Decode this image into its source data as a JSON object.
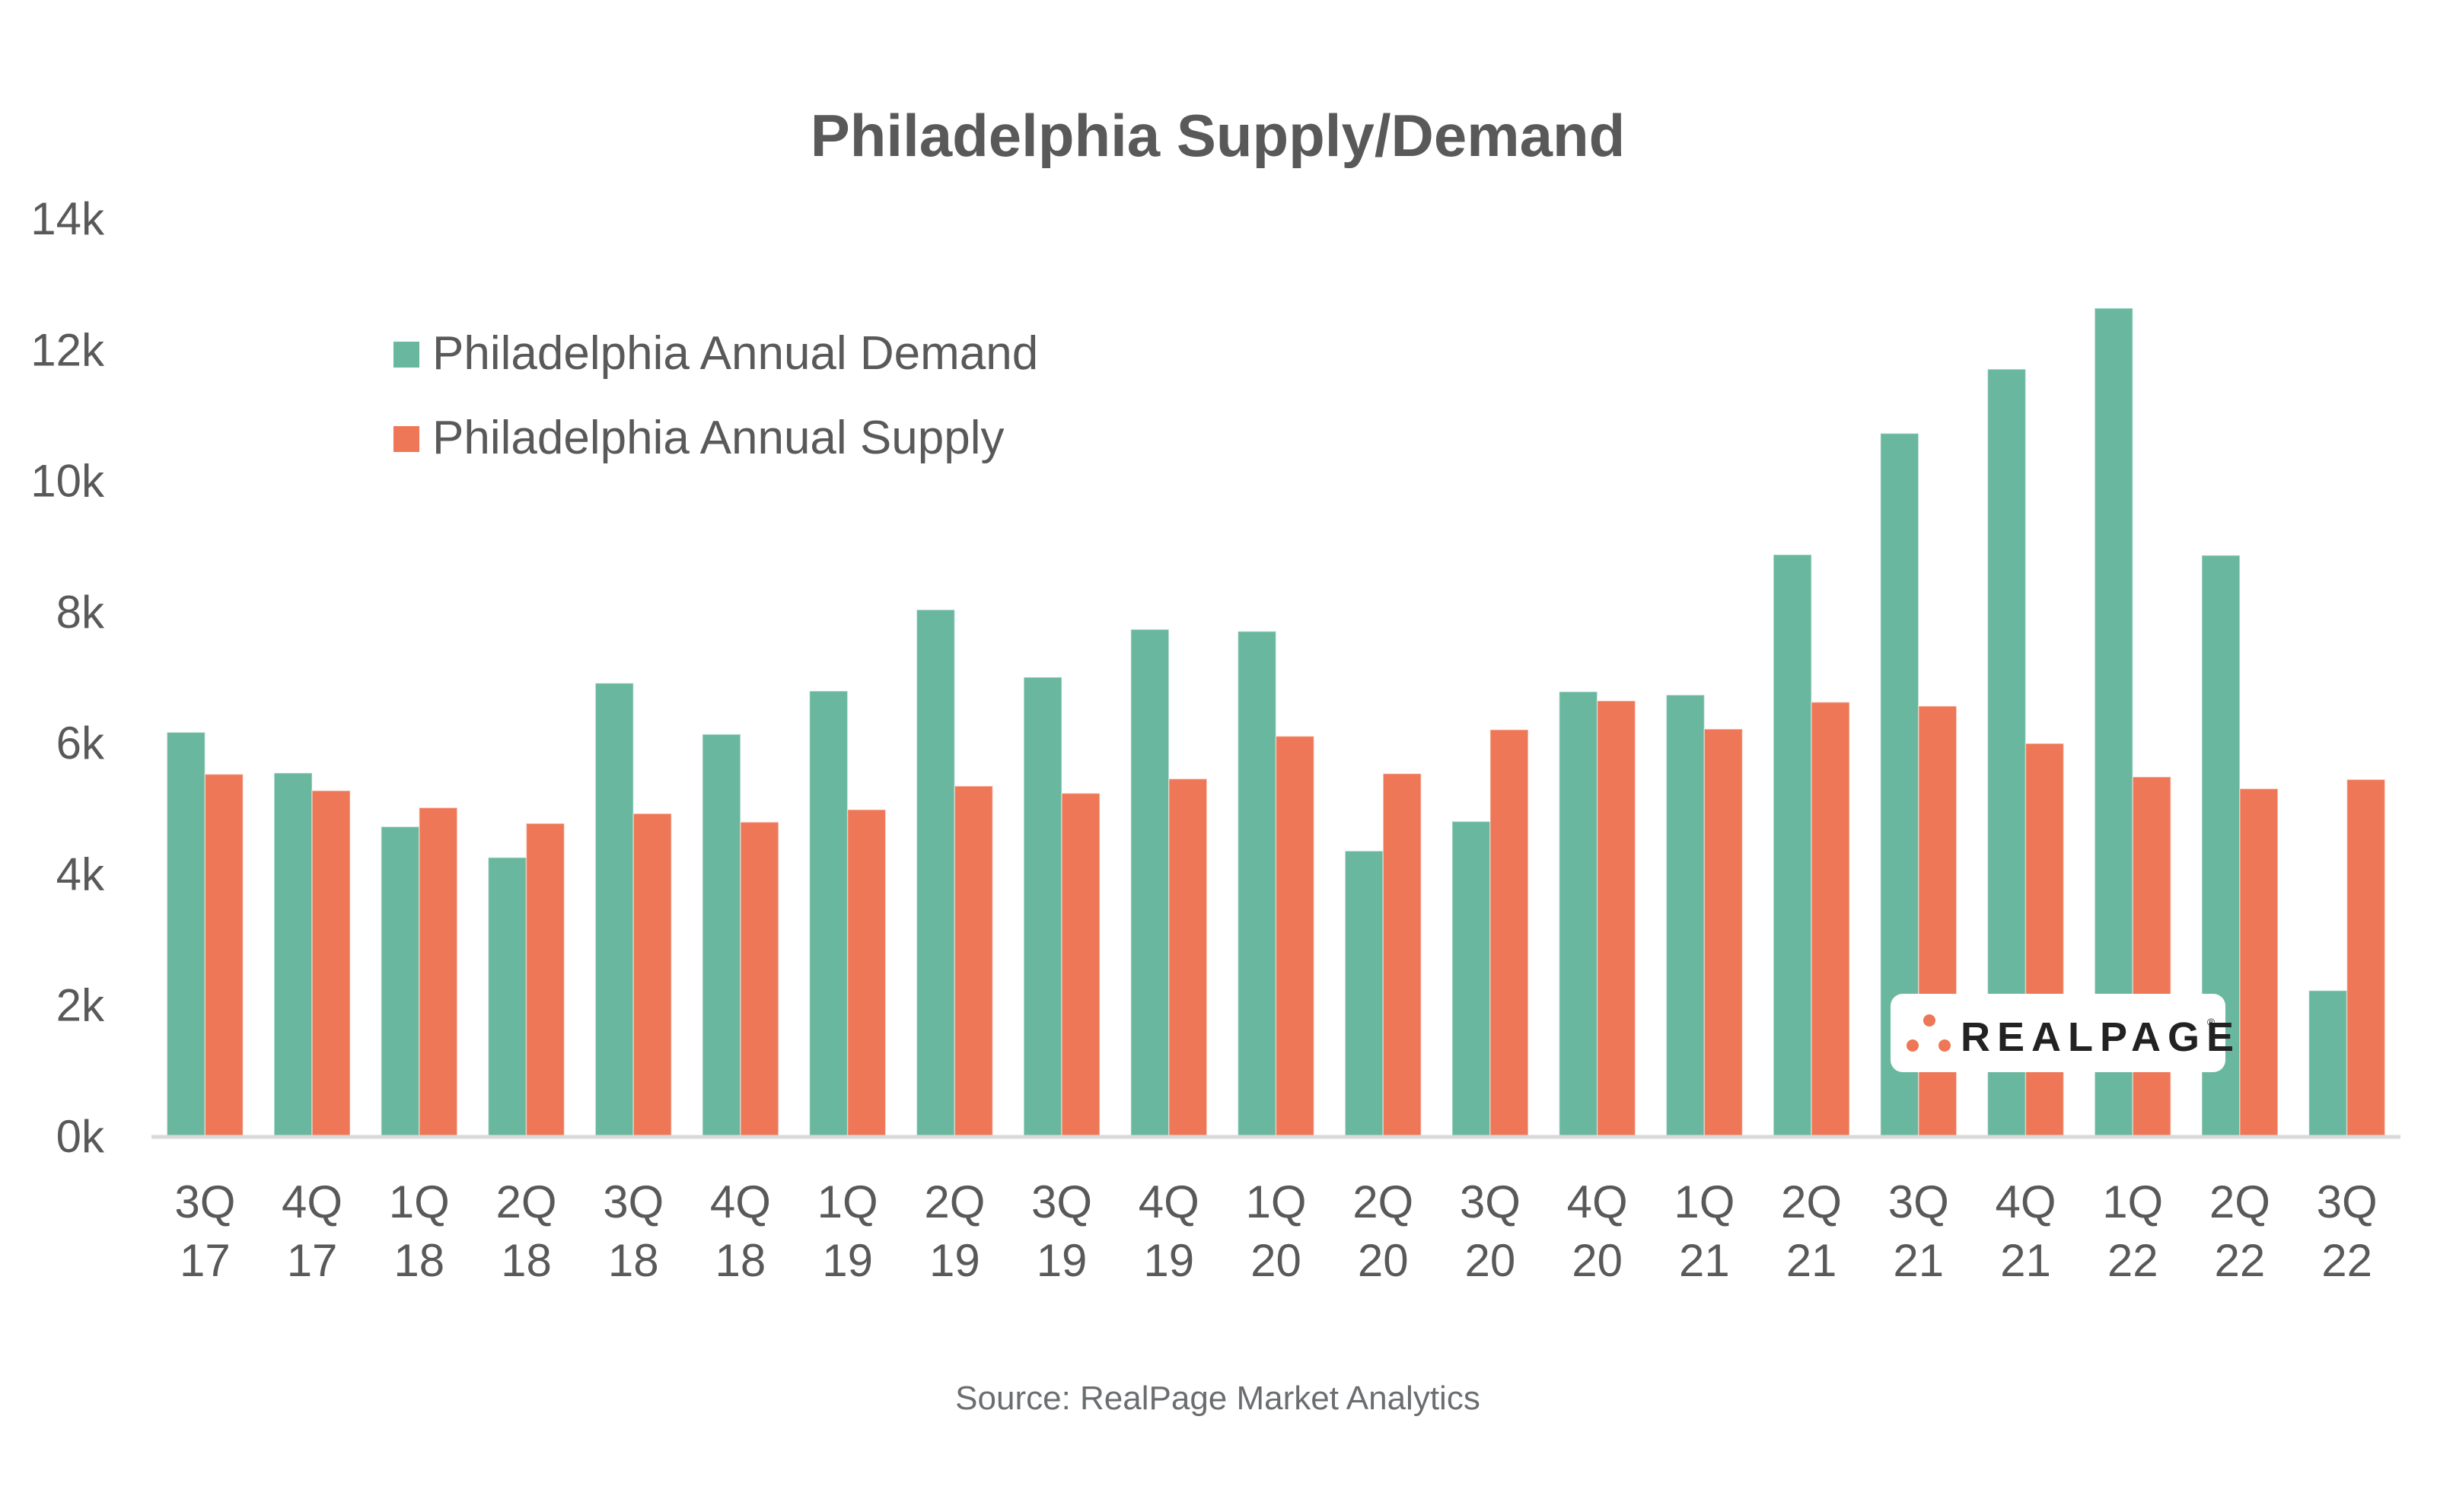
{
  "chart_data": {
    "type": "bar",
    "title": "Philadelphia Supply/Demand",
    "xlabel": "",
    "ylabel": "",
    "ylim": [
      0,
      14000
    ],
    "yticks": [
      0,
      2000,
      4000,
      6000,
      8000,
      10000,
      12000,
      14000
    ],
    "ytick_labels": [
      "0k",
      "2k",
      "4k",
      "6k",
      "8k",
      "10k",
      "12k",
      "14k"
    ],
    "grid": false,
    "legend_position": "top-left",
    "categories": [
      [
        "3Q",
        "17"
      ],
      [
        "4Q",
        "17"
      ],
      [
        "1Q",
        "18"
      ],
      [
        "2Q",
        "18"
      ],
      [
        "3Q",
        "18"
      ],
      [
        "4Q",
        "18"
      ],
      [
        "1Q",
        "19"
      ],
      [
        "2Q",
        "19"
      ],
      [
        "3Q",
        "19"
      ],
      [
        "4Q",
        "19"
      ],
      [
        "1Q",
        "20"
      ],
      [
        "2Q",
        "20"
      ],
      [
        "3Q",
        "20"
      ],
      [
        "4Q",
        "20"
      ],
      [
        "1Q",
        "21"
      ],
      [
        "2Q",
        "21"
      ],
      [
        "3Q",
        "21"
      ],
      [
        "4Q",
        "21"
      ],
      [
        "1Q",
        "22"
      ],
      [
        "2Q",
        "22"
      ],
      [
        "3Q",
        "22"
      ]
    ],
    "series": [
      {
        "name": "Philadelphia Annual Demand",
        "color": "#69b79e",
        "values": [
          6160,
          5540,
          4720,
          4250,
          6910,
          6130,
          6790,
          8030,
          7000,
          7730,
          7700,
          4350,
          4800,
          6780,
          6730,
          8870,
          10720,
          11700,
          12630,
          8860,
          2220
        ]
      },
      {
        "name": "Philadelphia Annual Supply",
        "color": "#ee7757",
        "values": [
          5520,
          5270,
          5010,
          4770,
          4920,
          4790,
          4980,
          5340,
          5230,
          5450,
          6100,
          5530,
          6200,
          6640,
          6210,
          6620,
          6560,
          5990,
          5480,
          5300,
          5440
        ]
      }
    ],
    "source": "Source: RealPage Market Analytics"
  },
  "logo": {
    "text": "REALPAGE",
    "registered": "®",
    "icon": "three-dots-icon",
    "dot_color": "#ee7757"
  },
  "colors": {
    "text": "#595959",
    "axis": "#d9d9d9",
    "background": "#ffffff"
  }
}
